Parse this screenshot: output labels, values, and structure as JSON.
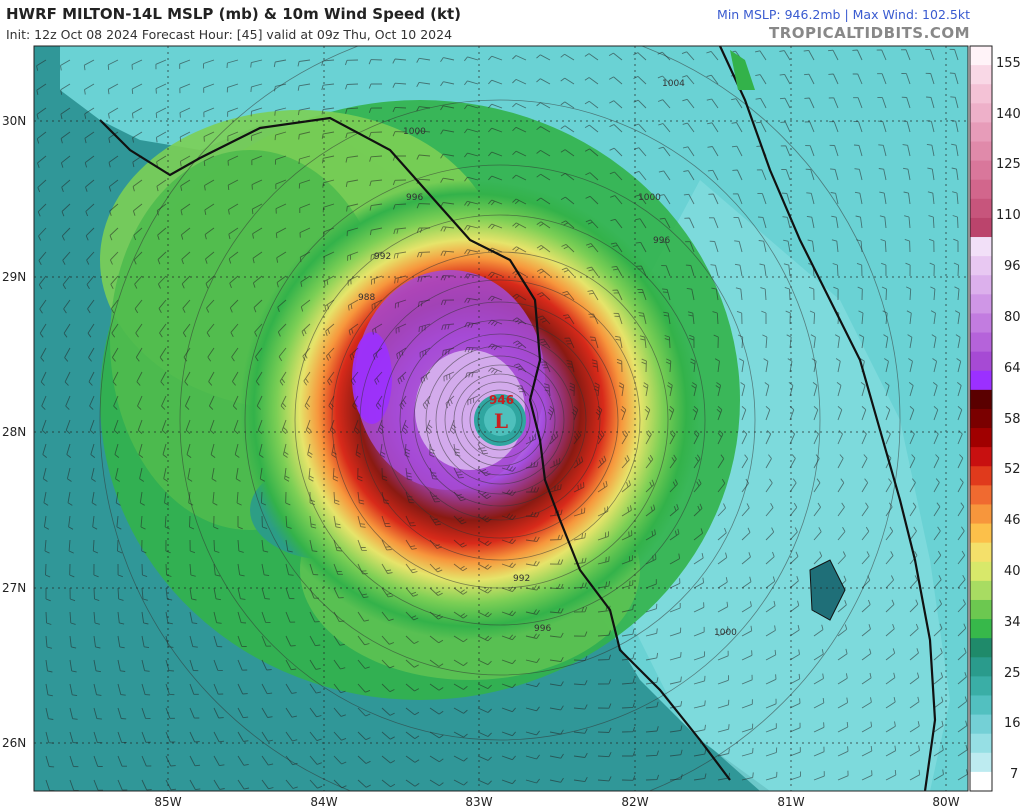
{
  "header": {
    "title": "HWRF MILTON-14L MSLP (mb) & 10m Wind Speed (kt)",
    "subtitle": "Init: 12z Oct 08 2024   Forecast Hour: [45]   valid at 09z Thu, Oct 10 2024",
    "stats": "Min MSLP: 946.2mb  |  Max Wind: 102.5kt",
    "credit": "TROPICALTIDBITS.COM"
  },
  "map": {
    "lat_labels": [
      "30N",
      "29N",
      "28N",
      "27N",
      "26N"
    ],
    "lon_labels": [
      "85W",
      "84W",
      "83W",
      "82W",
      "81W",
      "80W"
    ],
    "isobar_labels": [
      "1004",
      "1000",
      "996",
      "992",
      "988",
      "1000",
      "996",
      "992",
      "996",
      "1000"
    ],
    "low_center": {
      "symbol": "L",
      "pressure": "946"
    }
  },
  "colorbar": {
    "labels": [
      "155",
      "140",
      "125",
      "110",
      "96",
      "80",
      "64",
      "58",
      "52",
      "46",
      "40",
      "34",
      "25",
      "16",
      "7"
    ],
    "colors": [
      "#fff3f8",
      "#f9d8e6",
      "#f4c2d6",
      "#eeb0c9",
      "#e79cb9",
      "#e08aaa",
      "#d9779b",
      "#d2668c",
      "#c7557c",
      "#bb446c",
      "#f2e0f8",
      "#e8c8f2",
      "#dcb0ec",
      "#cf96e6",
      "#c27ce0",
      "#b563da",
      "#a64ad4",
      "#9b30ff",
      "#5a0000",
      "#7a0000",
      "#a00000",
      "#c81010",
      "#e03a1c",
      "#f06a30",
      "#f7963c",
      "#fcc04a",
      "#f4e06a",
      "#d8e86a",
      "#a8dc62",
      "#6cc850",
      "#37b84a",
      "#1f8a6a",
      "#2a9b8c",
      "#3aaea6",
      "#52c0c0",
      "#74d0d6",
      "#96dfe4",
      "#bdebf0",
      "#ffffff"
    ]
  }
}
